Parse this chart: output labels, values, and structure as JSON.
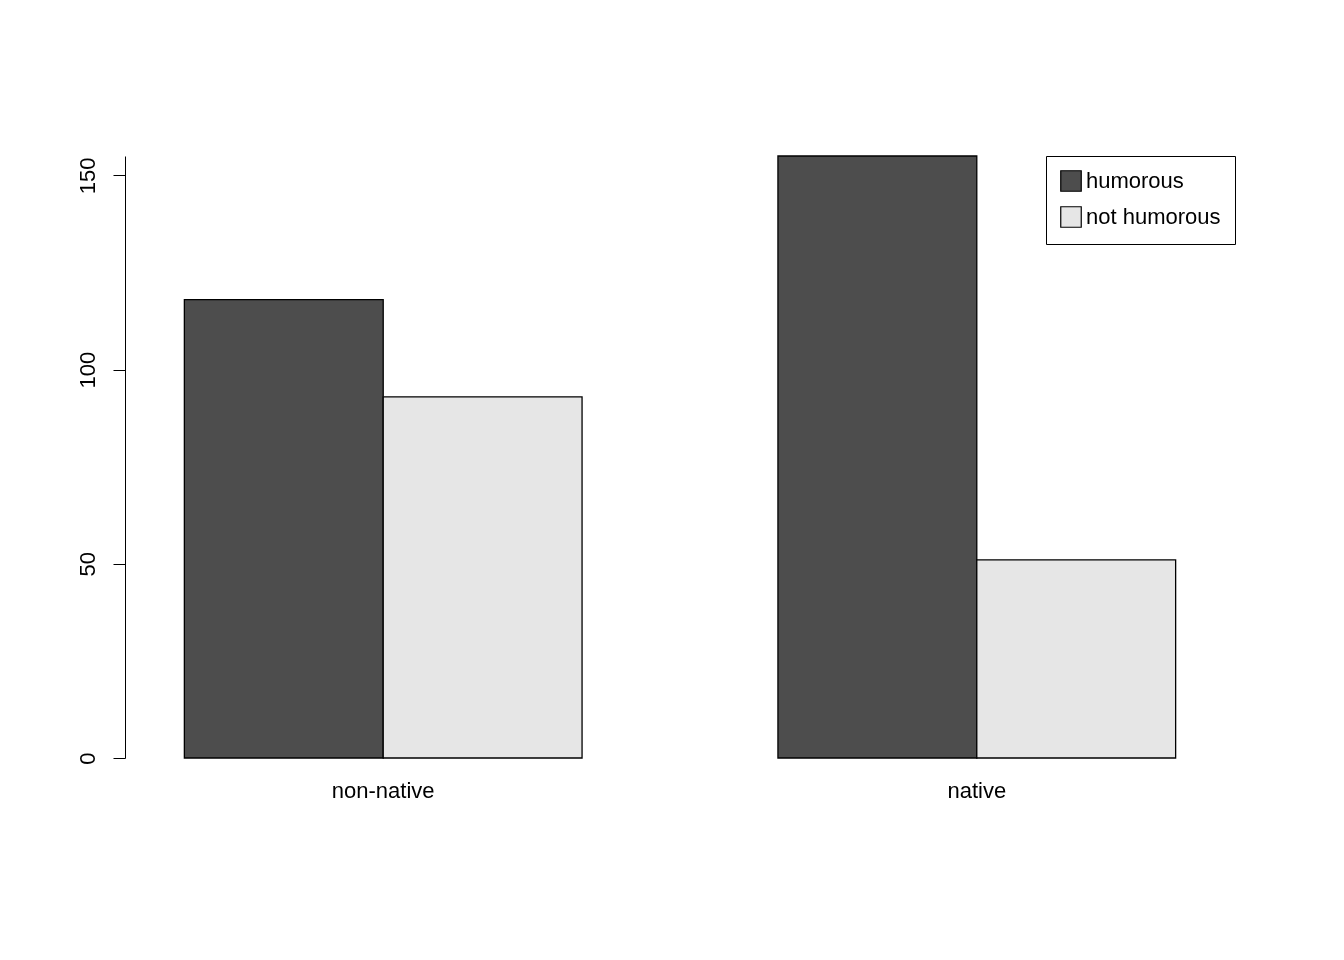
{
  "chart_data": {
    "type": "bar",
    "categories": [
      "non-native",
      "native"
    ],
    "series": [
      {
        "name": "humorous",
        "color": "#4d4d4d",
        "values": [
          118,
          155
        ]
      },
      {
        "name": "not humorous",
        "color": "#e6e6e6",
        "values": [
          93,
          51
        ]
      }
    ],
    "ylim": [
      0,
      155
    ],
    "yticks": [
      0,
      50,
      100,
      150
    ],
    "grid": false,
    "legend": "top right"
  }
}
